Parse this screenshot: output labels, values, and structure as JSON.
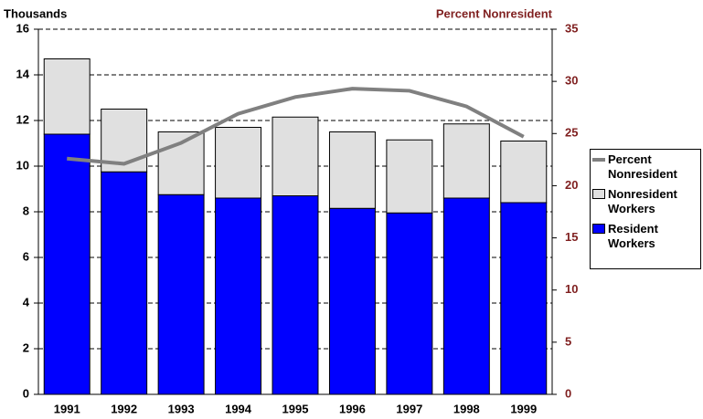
{
  "chart_data": {
    "type": "stacked-bar-line",
    "ylabel": "Thousands",
    "y2label": "Percent Nonresident",
    "categories": [
      "1991",
      "1992",
      "1993",
      "1994",
      "1995",
      "1996",
      "1997",
      "1998",
      "1999"
    ],
    "series": [
      {
        "name": "Percent Nonresident",
        "type": "line",
        "axis": "y2",
        "color": "#808080",
        "values": [
          22.6,
          22.1,
          24.1,
          26.9,
          28.5,
          29.3,
          29.1,
          27.6,
          24.7
        ]
      },
      {
        "name": "Nonresident Workers",
        "type": "bar",
        "color": "#e0e0e0",
        "values": [
          3.3,
          2.75,
          2.75,
          3.1,
          3.45,
          3.35,
          3.2,
          3.25,
          2.7
        ]
      },
      {
        "name": "Resident Workers",
        "type": "bar",
        "color": "#0000ff",
        "values": [
          11.4,
          9.75,
          8.75,
          8.6,
          8.7,
          8.15,
          7.95,
          8.6,
          8.4
        ]
      }
    ],
    "ylim": [
      0,
      16
    ],
    "yticks": [
      0,
      2,
      4,
      6,
      8,
      10,
      12,
      14,
      16
    ],
    "y2lim": [
      0,
      35
    ],
    "y2ticks": [
      0,
      5,
      10,
      15,
      20,
      25,
      30,
      35
    ],
    "y2color": "#7f1f1f",
    "grid": true
  }
}
